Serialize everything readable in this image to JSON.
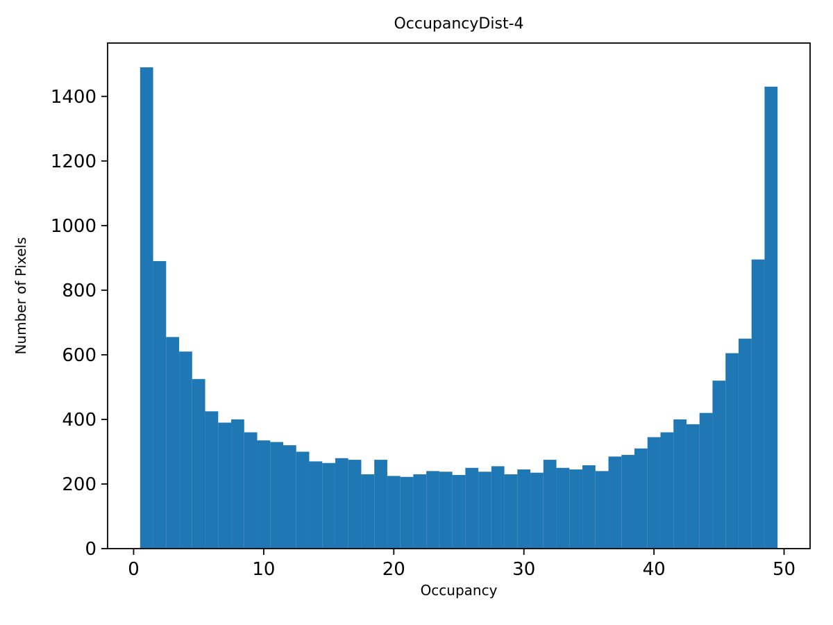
{
  "chart_data": {
    "type": "bar",
    "title": "OccupancyDist-4",
    "xlabel": "Occupancy",
    "ylabel": "Number of Pixels",
    "xlim": [
      -2,
      52
    ],
    "ylim": [
      0,
      1565
    ],
    "xticks": [
      0,
      10,
      20,
      30,
      40,
      50
    ],
    "yticks": [
      0,
      200,
      400,
      600,
      800,
      1000,
      1200,
      1400
    ],
    "bar_color": "#1f77b4",
    "axis_color": "#000000",
    "bin_start": 0.5,
    "bin_width": 1,
    "bin_centers": [
      1,
      2,
      3,
      4,
      5,
      6,
      7,
      8,
      9,
      10,
      11,
      12,
      13,
      14,
      15,
      16,
      17,
      18,
      19,
      20,
      21,
      22,
      23,
      24,
      25,
      26,
      27,
      28,
      29,
      30,
      31,
      32,
      33,
      34,
      35,
      36,
      37,
      38,
      39,
      40,
      41,
      42,
      43,
      44,
      45,
      46,
      47,
      48,
      49
    ],
    "values": [
      1490,
      890,
      655,
      610,
      525,
      425,
      390,
      400,
      360,
      335,
      330,
      320,
      300,
      270,
      265,
      280,
      275,
      230,
      275,
      225,
      222,
      230,
      240,
      238,
      228,
      250,
      238,
      255,
      230,
      245,
      235,
      275,
      250,
      245,
      258,
      240,
      285,
      290,
      310,
      345,
      360,
      400,
      385,
      420,
      520,
      605,
      650,
      895,
      1430
    ],
    "legend": null,
    "grid": false
  }
}
